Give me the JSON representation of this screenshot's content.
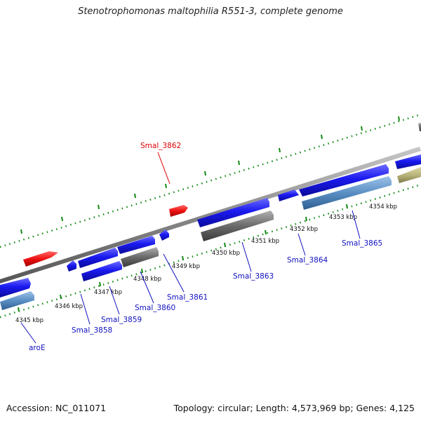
{
  "title": "Stenotrophomonas maltophilia R551-3, complete genome",
  "footer": {
    "accession": "Accession: NC_011071",
    "summary": "Topology: circular; Length: 4,573,969 bp; Genes: 4,125"
  },
  "colors": {
    "backbone": "#8a8a8a",
    "ticks": "#138a13",
    "cds": "#1111ee",
    "gene": "#5a8fc4",
    "pseudo": "#6a6a6a",
    "trna": "#ee1111",
    "other": "#b8b47a"
  },
  "kbp_labels": [
    "4345 kbp",
    "4346 kbp",
    "4347 kbp",
    "4348 kbp",
    "4349 kbp",
    "4350 kbp",
    "4351 kbp",
    "4352 kbp",
    "4353 kbp",
    "4354 kbp"
  ],
  "gene_labels": [
    "aroE",
    "Smal_3858",
    "Smal_3859",
    "Smal_3860",
    "Smal_3861",
    "Smal_3862",
    "Smal_3863",
    "Smal_3864",
    "Smal_3865"
  ]
}
